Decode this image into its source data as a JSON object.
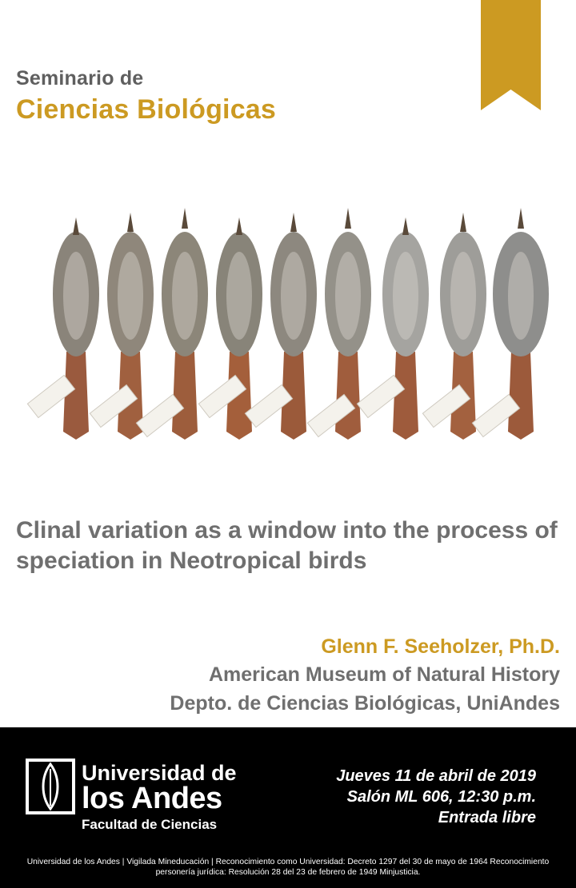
{
  "header": {
    "series_line1": "Seminario de",
    "series_line2": "Ciencias Biológicas"
  },
  "colors": {
    "accent_gold": "#cc9a22",
    "text_gray": "#6f6f6f",
    "footer_bg": "#000000"
  },
  "talk": {
    "title": "Clinal variation as a window into the process of speciation in Neotropical birds"
  },
  "speaker": {
    "name": "Glenn F. Seeholzer, Ph.D.",
    "affiliation_1": "American Museum of Natural History",
    "affiliation_2": "Depto. de Ciencias Biológicas, UniAndes"
  },
  "footer": {
    "university_line1": "Universidad de",
    "university_line2": "los Andes",
    "faculty": "Facultad de Ciencias",
    "event_date": "Jueves 11 de abril de 2019",
    "event_place": "Salón ML 606, 12:30 p.m.",
    "event_entry": "Entrada libre",
    "legal": "Universidad de los Andes | Vigilada Mineducación | Reconocimiento como Universidad: Decreto 1297 del 30 de mayo de 1964 Reconocimiento personería jurídica: Resolución 28 del 23 de febrero de 1949 Minjusticia."
  },
  "icons": {
    "ribbon": "bookmark-ribbon-icon",
    "logo": "uniandes-logo-icon"
  }
}
